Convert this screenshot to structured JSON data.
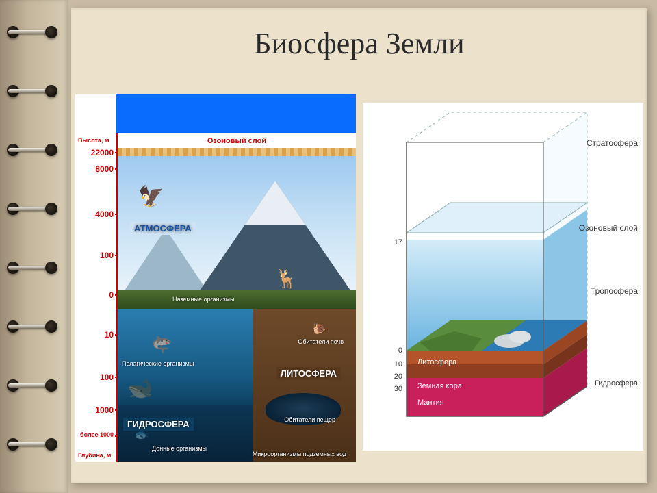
{
  "title": "Биосфера Земли",
  "left": {
    "axis_top": "Высота, м",
    "axis_bottom": "Глубина, м",
    "ozone": "Озоновый слой",
    "ticks_upper": [
      "22000",
      "8000",
      "4000",
      "100",
      "0"
    ],
    "ticks_lower": [
      "10",
      "100",
      "1000",
      "более 1000"
    ],
    "spheres": {
      "atmo": "АТМОСФЕРА",
      "hydro": "ГИДРОСФЕРА",
      "litho": "ЛИТОСФЕРА"
    },
    "labels": {
      "terrestrial": "Наземные организмы",
      "pelagic": "Пелагические организмы",
      "benthic": "Донные организмы",
      "soil": "Обитатели почв",
      "cave": "Обитатели пещер",
      "subsurface": "Микроорганизмы подземных вод"
    }
  },
  "right": {
    "layers": {
      "strato": "Стратосфера",
      "ozone": "Озоновый слой",
      "tropo": "Тропосфера",
      "litho": "Литосфера",
      "crust": "Земная кора",
      "hydro": "Гидросфера",
      "mantle": "Мантия"
    },
    "ticks_top": "17",
    "ticks_ground": [
      "0",
      "10",
      "20",
      "30"
    ],
    "colors": {
      "strato": "#ffffff",
      "tropo_top": "#bfe2f4",
      "tropo_bot": "#6cb6e2",
      "ozone": "#cde6f5",
      "land": "#5a8c3e",
      "sea": "#2d7bb5",
      "crust1": "#b5542a",
      "crust2": "#8f3e21",
      "mantle": "#c9205c"
    }
  }
}
